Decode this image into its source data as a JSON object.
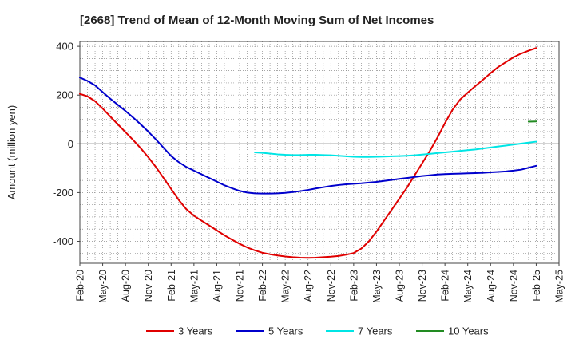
{
  "chart_data": {
    "type": "line",
    "title": "[2668]  Trend of Mean of 12-Month Moving Sum of Net Incomes",
    "ylabel": "Amount (million yen)",
    "xlabel": "",
    "ylim": [
      -490,
      420
    ],
    "yticks": [
      400,
      200,
      0,
      -200,
      -400
    ],
    "xtick_labels": [
      "Feb-20",
      "May-20",
      "Aug-20",
      "Nov-20",
      "Feb-21",
      "May-21",
      "Aug-21",
      "Nov-21",
      "Feb-22",
      "May-22",
      "Aug-22",
      "Nov-22",
      "Feb-23",
      "May-23",
      "Aug-23",
      "Nov-23",
      "Feb-24",
      "May-24",
      "Aug-24",
      "Nov-24",
      "Feb-25",
      "May-25"
    ],
    "x_months_domain": [
      "2020-02",
      "2025-05"
    ],
    "grid": true,
    "legend_position": "bottom",
    "series": [
      {
        "name": "3 Years",
        "color": "#e00000",
        "points": [
          [
            "2020-02",
            205
          ],
          [
            "2020-03",
            195
          ],
          [
            "2020-04",
            175
          ],
          [
            "2020-05",
            145
          ],
          [
            "2020-06",
            112
          ],
          [
            "2020-07",
            80
          ],
          [
            "2020-08",
            48
          ],
          [
            "2020-09",
            16
          ],
          [
            "2020-10",
            -18
          ],
          [
            "2020-11",
            -55
          ],
          [
            "2020-12",
            -95
          ],
          [
            "2021-01",
            -140
          ],
          [
            "2021-02",
            -185
          ],
          [
            "2021-03",
            -230
          ],
          [
            "2021-04",
            -268
          ],
          [
            "2021-05",
            -295
          ],
          [
            "2021-06",
            -315
          ],
          [
            "2021-07",
            -335
          ],
          [
            "2021-08",
            -355
          ],
          [
            "2021-09",
            -375
          ],
          [
            "2021-10",
            -393
          ],
          [
            "2021-11",
            -410
          ],
          [
            "2021-12",
            -425
          ],
          [
            "2022-01",
            -437
          ],
          [
            "2022-02",
            -447
          ],
          [
            "2022-03",
            -453
          ],
          [
            "2022-04",
            -458
          ],
          [
            "2022-05",
            -462
          ],
          [
            "2022-06",
            -465
          ],
          [
            "2022-07",
            -467
          ],
          [
            "2022-08",
            -468
          ],
          [
            "2022-09",
            -467
          ],
          [
            "2022-10",
            -465
          ],
          [
            "2022-11",
            -463
          ],
          [
            "2022-12",
            -460
          ],
          [
            "2023-01",
            -455
          ],
          [
            "2023-02",
            -448
          ],
          [
            "2023-03",
            -430
          ],
          [
            "2023-04",
            -400
          ],
          [
            "2023-05",
            -360
          ],
          [
            "2023-06",
            -315
          ],
          [
            "2023-07",
            -270
          ],
          [
            "2023-08",
            -225
          ],
          [
            "2023-09",
            -180
          ],
          [
            "2023-10",
            -130
          ],
          [
            "2023-11",
            -80
          ],
          [
            "2023-12",
            -30
          ],
          [
            "2024-01",
            25
          ],
          [
            "2024-02",
            85
          ],
          [
            "2024-03",
            140
          ],
          [
            "2024-04",
            182
          ],
          [
            "2024-05",
            210
          ],
          [
            "2024-06",
            237
          ],
          [
            "2024-07",
            263
          ],
          [
            "2024-08",
            290
          ],
          [
            "2024-09",
            315
          ],
          [
            "2024-10",
            335
          ],
          [
            "2024-11",
            355
          ],
          [
            "2024-12",
            370
          ],
          [
            "2025-01",
            382
          ],
          [
            "2025-02",
            393
          ]
        ]
      },
      {
        "name": "5 Years",
        "color": "#0000cc",
        "points": [
          [
            "2020-02",
            272
          ],
          [
            "2020-03",
            258
          ],
          [
            "2020-04",
            240
          ],
          [
            "2020-05",
            212
          ],
          [
            "2020-06",
            185
          ],
          [
            "2020-07",
            160
          ],
          [
            "2020-08",
            135
          ],
          [
            "2020-09",
            108
          ],
          [
            "2020-10",
            80
          ],
          [
            "2020-11",
            50
          ],
          [
            "2020-12",
            18
          ],
          [
            "2021-01",
            -16
          ],
          [
            "2021-02",
            -50
          ],
          [
            "2021-03",
            -75
          ],
          [
            "2021-04",
            -95
          ],
          [
            "2021-05",
            -110
          ],
          [
            "2021-06",
            -125
          ],
          [
            "2021-07",
            -140
          ],
          [
            "2021-08",
            -155
          ],
          [
            "2021-09",
            -170
          ],
          [
            "2021-10",
            -182
          ],
          [
            "2021-11",
            -193
          ],
          [
            "2021-12",
            -200
          ],
          [
            "2022-01",
            -203
          ],
          [
            "2022-02",
            -204
          ],
          [
            "2022-03",
            -204
          ],
          [
            "2022-04",
            -203
          ],
          [
            "2022-05",
            -201
          ],
          [
            "2022-06",
            -198
          ],
          [
            "2022-07",
            -194
          ],
          [
            "2022-08",
            -189
          ],
          [
            "2022-09",
            -183
          ],
          [
            "2022-10",
            -178
          ],
          [
            "2022-11",
            -173
          ],
          [
            "2022-12",
            -169
          ],
          [
            "2023-01",
            -166
          ],
          [
            "2023-02",
            -164
          ],
          [
            "2023-03",
            -162
          ],
          [
            "2023-04",
            -159
          ],
          [
            "2023-05",
            -156
          ],
          [
            "2023-06",
            -152
          ],
          [
            "2023-07",
            -148
          ],
          [
            "2023-08",
            -144
          ],
          [
            "2023-09",
            -140
          ],
          [
            "2023-10",
            -136
          ],
          [
            "2023-11",
            -132
          ],
          [
            "2023-12",
            -129
          ],
          [
            "2024-01",
            -126
          ],
          [
            "2024-02",
            -124
          ],
          [
            "2024-03",
            -123
          ],
          [
            "2024-04",
            -122
          ],
          [
            "2024-05",
            -121
          ],
          [
            "2024-06",
            -120
          ],
          [
            "2024-07",
            -119
          ],
          [
            "2024-08",
            -117
          ],
          [
            "2024-09",
            -115
          ],
          [
            "2024-10",
            -113
          ],
          [
            "2024-11",
            -110
          ],
          [
            "2024-12",
            -106
          ],
          [
            "2025-01",
            -98
          ],
          [
            "2025-02",
            -90
          ]
        ]
      },
      {
        "name": "7 Years",
        "color": "#00e5e5",
        "points": [
          [
            "2022-01",
            -35
          ],
          [
            "2022-02",
            -37
          ],
          [
            "2022-03",
            -40
          ],
          [
            "2022-04",
            -43
          ],
          [
            "2022-05",
            -45
          ],
          [
            "2022-06",
            -46
          ],
          [
            "2022-07",
            -46
          ],
          [
            "2022-08",
            -45
          ],
          [
            "2022-09",
            -45
          ],
          [
            "2022-10",
            -46
          ],
          [
            "2022-11",
            -47
          ],
          [
            "2022-12",
            -49
          ],
          [
            "2023-01",
            -51
          ],
          [
            "2023-02",
            -53
          ],
          [
            "2023-03",
            -54
          ],
          [
            "2023-04",
            -54
          ],
          [
            "2023-05",
            -53
          ],
          [
            "2023-06",
            -52
          ],
          [
            "2023-07",
            -51
          ],
          [
            "2023-08",
            -50
          ],
          [
            "2023-09",
            -49
          ],
          [
            "2023-10",
            -47
          ],
          [
            "2023-11",
            -44
          ],
          [
            "2023-12",
            -41
          ],
          [
            "2024-01",
            -38
          ],
          [
            "2024-02",
            -35
          ],
          [
            "2024-03",
            -32
          ],
          [
            "2024-04",
            -29
          ],
          [
            "2024-05",
            -26
          ],
          [
            "2024-06",
            -23
          ],
          [
            "2024-07",
            -19
          ],
          [
            "2024-08",
            -15
          ],
          [
            "2024-09",
            -11
          ],
          [
            "2024-10",
            -7
          ],
          [
            "2024-11",
            -3
          ],
          [
            "2024-12",
            1
          ],
          [
            "2025-01",
            5
          ],
          [
            "2025-02",
            9
          ]
        ]
      },
      {
        "name": "10 Years",
        "color": "#228b22",
        "points": [
          [
            "2025-01",
            91
          ],
          [
            "2025-02",
            92
          ]
        ]
      }
    ]
  }
}
